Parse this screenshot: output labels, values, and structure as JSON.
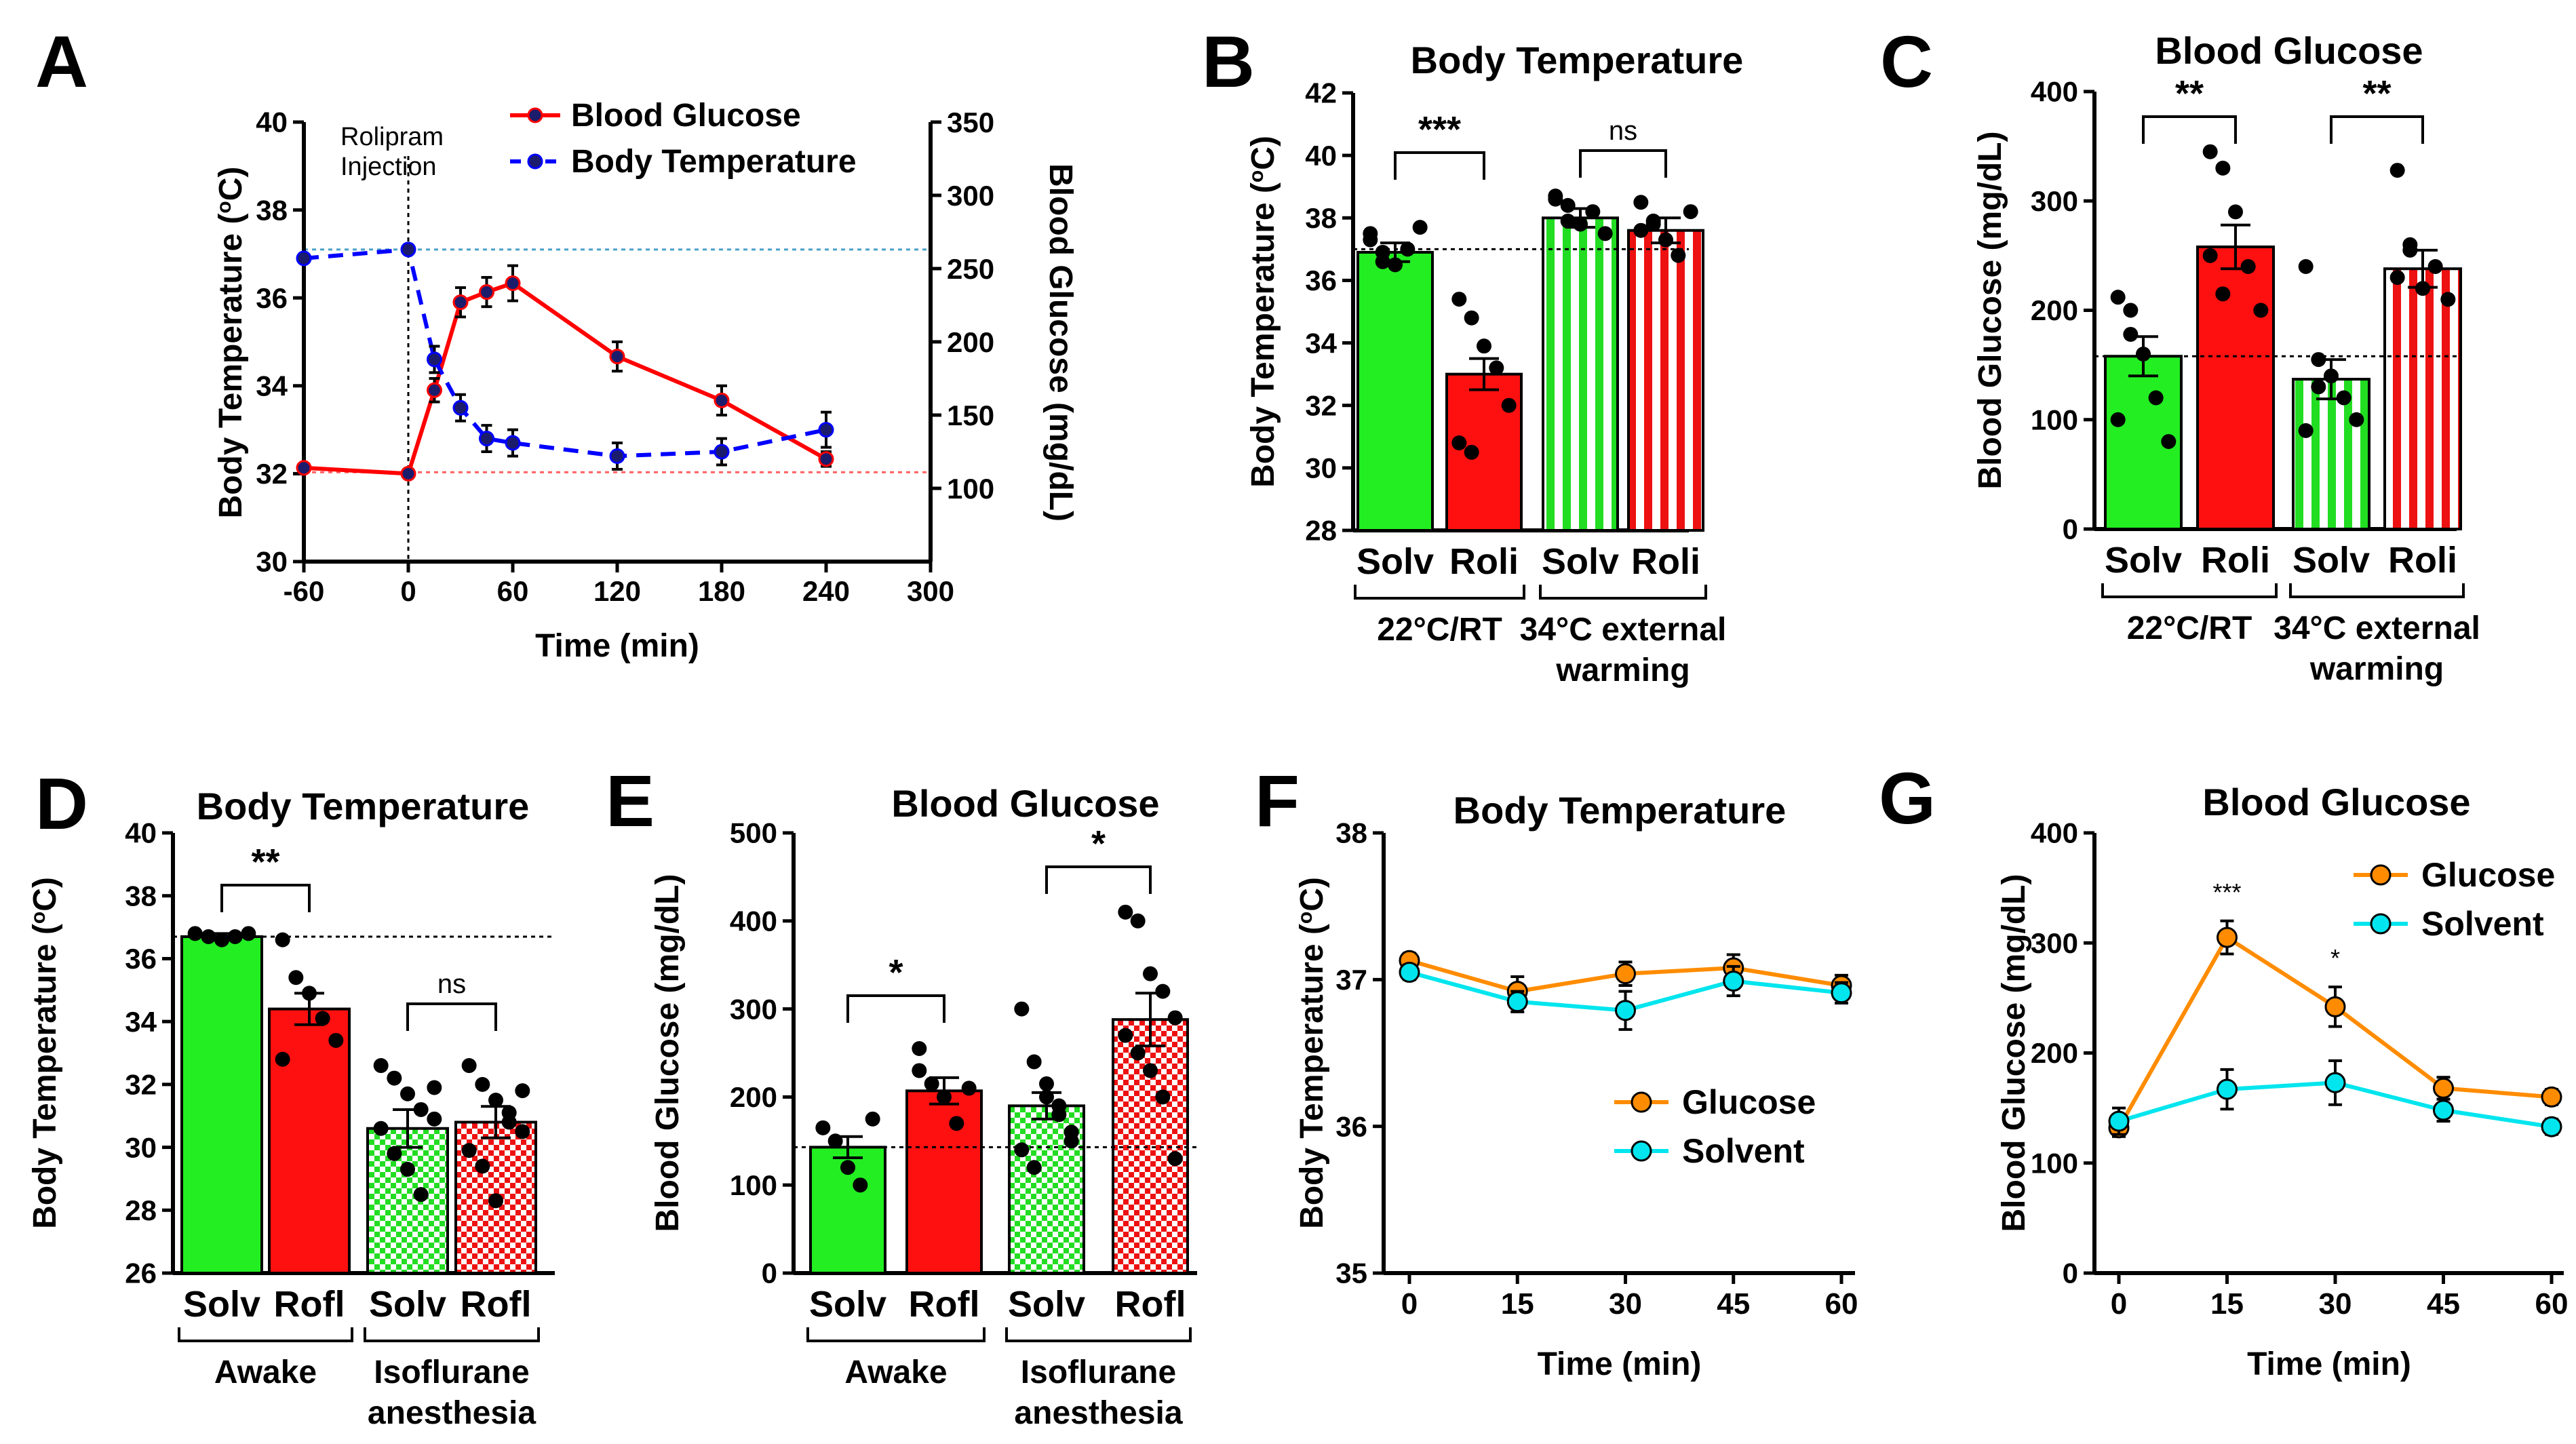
{
  "chart_data": [
    {
      "id": "A",
      "type": "line",
      "panel_label": "A",
      "xlabel": "Time (min)",
      "ylabel_left": "Body Temperature (",
      "ylabel_left_unit": "C)",
      "ylabel_left_sup": "o",
      "ylabel_right": "Blood Glucose (mg/dL)",
      "xlim": [
        -60,
        300
      ],
      "ylim_left": [
        30,
        40
      ],
      "ylim_right": [
        50,
        350
      ],
      "xticks": [
        -60,
        0,
        60,
        120,
        180,
        240,
        300
      ],
      "yticks_left": [
        30,
        32,
        34,
        36,
        38,
        40
      ],
      "yticks_right": [
        100,
        150,
        200,
        250,
        300,
        350
      ],
      "annotation": [
        "Rolipram",
        "Injection"
      ],
      "ref_left": 37.1,
      "ref_right": 111,
      "series": [
        {
          "name": "Blood Glucose",
          "axis": "right",
          "color": "#ff0000",
          "x": [
            -60,
            0,
            15,
            30,
            45,
            60,
            120,
            180,
            240
          ],
          "values": [
            114,
            110,
            167,
            227,
            234,
            240,
            190,
            160,
            120
          ],
          "errors": [
            0,
            0,
            8,
            10,
            10,
            12,
            10,
            10,
            5
          ]
        },
        {
          "name": "Body Temperature",
          "axis": "left",
          "color": "#0000ff",
          "x": [
            -60,
            0,
            15,
            30,
            45,
            60,
            120,
            180,
            240
          ],
          "values": [
            36.9,
            37.1,
            34.6,
            33.5,
            32.8,
            32.7,
            32.4,
            32.5,
            33.0
          ],
          "errors": [
            0,
            0,
            0.3,
            0.3,
            0.3,
            0.3,
            0.3,
            0.3,
            0.4
          ]
        }
      ]
    },
    {
      "id": "B",
      "type": "bar",
      "panel_label": "B",
      "title": "Body Temperature",
      "ylabel": "Body Temperature (",
      "ylabel_unit": "C)",
      "ylabel_sup": "o",
      "ylim": [
        28,
        42
      ],
      "yticks": [
        28,
        30,
        32,
        34,
        36,
        38,
        40,
        42
      ],
      "categories": [
        "Solv",
        "Roli",
        "Solv",
        "Roli"
      ],
      "values": [
        36.9,
        33.0,
        38.0,
        37.6
      ],
      "errors": [
        0.3,
        0.5,
        0.3,
        0.4
      ],
      "group_labels": [
        [
          "22°C/RT"
        ],
        [
          "34°C external",
          "warming"
        ]
      ],
      "ref_value": 37.0,
      "significance": [
        {
          "label": "***"
        },
        {
          "label": "ns"
        }
      ],
      "points": [
        [
          37.5,
          36.9,
          36.5,
          37.0,
          37.7,
          37.3,
          36.6
        ],
        [
          35.4,
          34.8,
          33.9,
          33.2,
          32.0,
          30.8,
          30.5
        ],
        [
          38.6,
          38.4,
          37.8,
          38.2,
          37.5,
          38.7,
          37.9
        ],
        [
          38.5,
          37.8,
          37.3,
          36.8,
          38.2,
          37.6,
          37.9
        ]
      ]
    },
    {
      "id": "C",
      "type": "bar",
      "panel_label": "C",
      "title": "Blood Glucose",
      "ylabel": "Blood Glucose (mg/dL)",
      "ylim": [
        0,
        400
      ],
      "yticks": [
        0,
        100,
        200,
        300,
        400
      ],
      "categories": [
        "Solv",
        "Roli",
        "Solv",
        "Roli"
      ],
      "values": [
        158,
        258,
        137,
        238
      ],
      "errors": [
        18,
        20,
        18,
        17
      ],
      "group_labels": [
        [
          "22°C/RT"
        ],
        [
          "34°C external",
          "warming"
        ]
      ],
      "ref_value": 158,
      "significance": [
        {
          "label": "**"
        },
        {
          "label": "**"
        }
      ],
      "points": [
        [
          212,
          200,
          160,
          120,
          80,
          100,
          178
        ],
        [
          345,
          330,
          290,
          240,
          200,
          250,
          215
        ],
        [
          240,
          155,
          140,
          120,
          100,
          90,
          130
        ],
        [
          328,
          255,
          220,
          240,
          210,
          230,
          260
        ]
      ]
    },
    {
      "id": "D",
      "type": "bar",
      "panel_label": "D",
      "title": "Body Temperature",
      "ylabel": "Body Temperature (",
      "ylabel_unit": "C)",
      "ylabel_sup": "o",
      "ylim": [
        26,
        40
      ],
      "yticks": [
        26,
        28,
        30,
        32,
        34,
        36,
        38,
        40
      ],
      "categories": [
        "Solv",
        "Rofl",
        "Solv",
        "Rofl"
      ],
      "values": [
        36.7,
        34.4,
        30.6,
        30.8
      ],
      "errors": [
        0.1,
        0.5,
        0.6,
        0.5
      ],
      "group_labels": [
        [
          "Awake"
        ],
        [
          "Isoflurane",
          "anesthesia"
        ]
      ],
      "ref_value": 36.7,
      "significance": [
        {
          "label": "**"
        },
        {
          "label": "ns"
        }
      ],
      "points": [
        [
          36.8,
          36.7,
          36.6,
          36.7,
          36.8
        ],
        [
          36.6,
          35.4,
          34.9,
          34.1,
          33.4,
          32.8
        ],
        [
          32.6,
          32.2,
          31.7,
          31.2,
          30.9,
          30.6,
          29.8,
          29.3,
          28.5,
          31.9
        ],
        [
          32.6,
          32.0,
          31.5,
          31.1,
          30.5,
          29.9,
          29.4,
          28.3,
          30.8,
          31.8
        ]
      ]
    },
    {
      "id": "E",
      "type": "bar",
      "panel_label": "E",
      "title": "Blood Glucose",
      "ylabel": "Blood Glucose (mg/dL)",
      "ylim": [
        0,
        500
      ],
      "yticks": [
        0,
        100,
        200,
        300,
        400,
        500
      ],
      "categories": [
        "Solv",
        "Rofl",
        "Solv",
        "Rofl"
      ],
      "values": [
        143,
        207,
        190,
        288
      ],
      "errors": [
        12,
        15,
        15,
        30
      ],
      "group_labels": [
        [
          "Awake"
        ],
        [
          "Isoflurane",
          "anesthesia"
        ]
      ],
      "ref_value": 143,
      "significance": [
        {
          "label": "*"
        },
        {
          "label": "*"
        }
      ],
      "points": [
        [
          165,
          150,
          120,
          100,
          175
        ],
        [
          255,
          215,
          200,
          170,
          210,
          230
        ],
        [
          300,
          240,
          215,
          190,
          160,
          140,
          120,
          200,
          180,
          150
        ],
        [
          410,
          400,
          340,
          320,
          290,
          270,
          250,
          230,
          200,
          130
        ]
      ]
    },
    {
      "id": "F",
      "type": "line",
      "panel_label": "F",
      "title": "Body Temperature",
      "ylabel": "Body Temperature (",
      "ylabel_unit": "C)",
      "ylabel_sup": "o",
      "xlabel": "Time (min)",
      "xlim": [
        0,
        60
      ],
      "ylim": [
        35,
        38
      ],
      "xticks": [
        0,
        15,
        30,
        45,
        60
      ],
      "yticks": [
        35,
        36,
        37,
        38
      ],
      "legend_position": "center-right",
      "series": [
        {
          "name": "Glucose",
          "color": "#ff8c00",
          "x": [
            0,
            15,
            30,
            45,
            60
          ],
          "values": [
            37.13,
            36.92,
            37.04,
            37.08,
            36.96
          ],
          "errors": [
            0.05,
            0.1,
            0.08,
            0.09,
            0.07
          ]
        },
        {
          "name": "Solvent",
          "color": "#00e5ee",
          "x": [
            0,
            15,
            30,
            45,
            60
          ],
          "values": [
            37.05,
            36.85,
            36.79,
            36.99,
            36.91
          ],
          "errors": [
            0.05,
            0.07,
            0.13,
            0.1,
            0.07
          ]
        }
      ]
    },
    {
      "id": "G",
      "type": "line",
      "panel_label": "G",
      "title": "Blood Glucose",
      "ylabel": "Blood Glucose (mg/dL)",
      "xlabel": "Time (min)",
      "xlim": [
        0,
        60
      ],
      "ylim": [
        0,
        400
      ],
      "xticks": [
        0,
        15,
        30,
        45,
        60
      ],
      "yticks": [
        0,
        100,
        200,
        300,
        400
      ],
      "legend_position": "top-right",
      "annotations": [
        {
          "x": 15,
          "label": "***"
        },
        {
          "x": 30,
          "label": "*"
        }
      ],
      "series": [
        {
          "name": "Glucose",
          "color": "#ff8c00",
          "x": [
            0,
            15,
            30,
            45,
            60
          ],
          "values": [
            132,
            305,
            242,
            168,
            160
          ],
          "errors": [
            8,
            15,
            18,
            10,
            7
          ]
        },
        {
          "name": "Solvent",
          "color": "#00e5ee",
          "x": [
            0,
            15,
            30,
            45,
            60
          ],
          "values": [
            138,
            167,
            173,
            148,
            133
          ],
          "errors": [
            12,
            18,
            20,
            10,
            7
          ]
        }
      ]
    }
  ]
}
